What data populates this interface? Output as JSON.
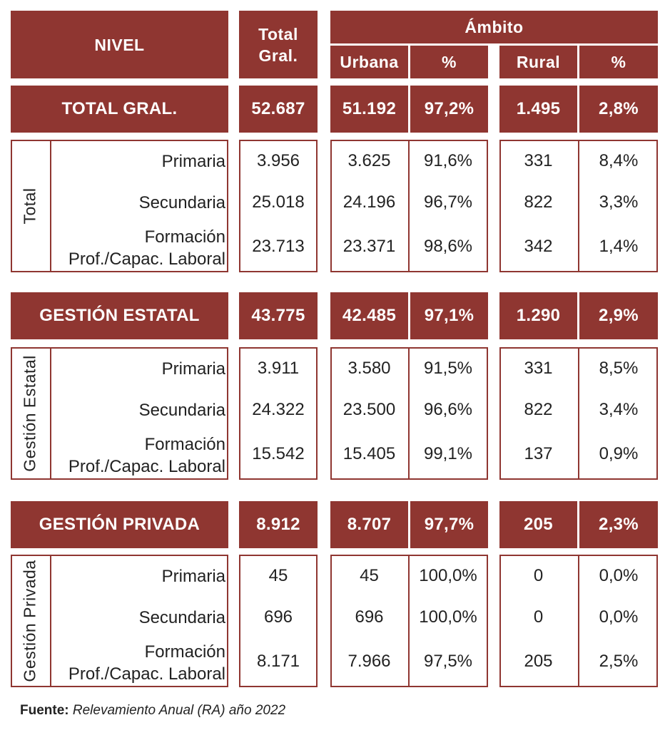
{
  "header": {
    "nivel": "NIVEL",
    "total_line1": "Total",
    "total_line2": "Gral.",
    "ambito": "Ámbito",
    "urbana": "Urbana",
    "pct1": "%",
    "rural": "Rural",
    "pct2": "%"
  },
  "sections": [
    {
      "title": "TOTAL GRAL.",
      "summary": {
        "total": "52.687",
        "urbana": "51.192",
        "urbana_pct": "97,2%",
        "rural": "1.495",
        "rural_pct": "2,8%"
      },
      "group_label": "Total",
      "rows": [
        {
          "label1": "Primaria",
          "label2": "",
          "total": "3.956",
          "urbana": "3.625",
          "urbana_pct": "91,6%",
          "rural": "331",
          "rural_pct": "8,4%"
        },
        {
          "label1": "Secundaria",
          "label2": "",
          "total": "25.018",
          "urbana": "24.196",
          "urbana_pct": "96,7%",
          "rural": "822",
          "rural_pct": "3,3%"
        },
        {
          "label1": "Formación",
          "label2": "Prof./Capac. Laboral",
          "total": "23.713",
          "urbana": "23.371",
          "urbana_pct": "98,6%",
          "rural": "342",
          "rural_pct": "1,4%"
        }
      ]
    },
    {
      "title": "GESTIÓN ESTATAL",
      "summary": {
        "total": "43.775",
        "urbana": "42.485",
        "urbana_pct": "97,1%",
        "rural": "1.290",
        "rural_pct": "2,9%"
      },
      "group_label": "Gestión Estatal",
      "rows": [
        {
          "label1": "Primaria",
          "label2": "",
          "total": "3.911",
          "urbana": "3.580",
          "urbana_pct": "91,5%",
          "rural": "331",
          "rural_pct": "8,5%"
        },
        {
          "label1": "Secundaria",
          "label2": "",
          "total": "24.322",
          "urbana": "23.500",
          "urbana_pct": "96,6%",
          "rural": "822",
          "rural_pct": "3,4%"
        },
        {
          "label1": "Formación",
          "label2": "Prof./Capac. Laboral",
          "total": "15.542",
          "urbana": "15.405",
          "urbana_pct": "99,1%",
          "rural": "137",
          "rural_pct": "0,9%"
        }
      ]
    },
    {
      "title": "GESTIÓN PRIVADA",
      "summary": {
        "total": "8.912",
        "urbana": "8.707",
        "urbana_pct": "97,7%",
        "rural": "205",
        "rural_pct": "2,3%"
      },
      "group_label": "Gestión Privada",
      "rows": [
        {
          "label1": "Primaria",
          "label2": "",
          "total": "45",
          "urbana": "45",
          "urbana_pct": "100,0%",
          "rural": "0",
          "rural_pct": "0,0%"
        },
        {
          "label1": "Secundaria",
          "label2": "",
          "total": "696",
          "urbana": "696",
          "urbana_pct": "100,0%",
          "rural": "0",
          "rural_pct": "0,0%"
        },
        {
          "label1": "Formación",
          "label2": "Prof./Capac. Laboral",
          "total": "8.171",
          "urbana": "7.966",
          "urbana_pct": "97,5%",
          "rural": "205",
          "rural_pct": "2,5%"
        }
      ]
    }
  ],
  "source": {
    "label": "Fuente:",
    "text": "Relevamiento Anual (RA) año 2022"
  }
}
